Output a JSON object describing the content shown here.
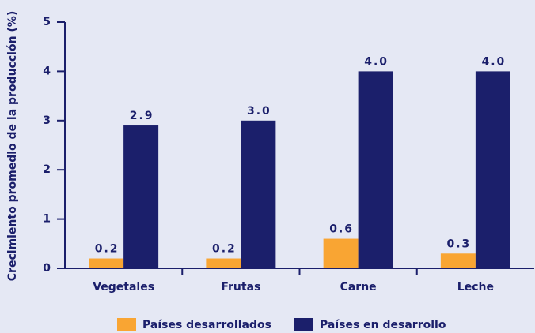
{
  "chart_data": {
    "type": "bar",
    "y_label": "Crecimiento promedio de la producción (%)",
    "categories": [
      "Vegetales",
      "Frutas",
      "Carne",
      "Leche"
    ],
    "series": [
      {
        "name": "Países desarrollados",
        "color": "#f9a533",
        "values": [
          0.2,
          0.2,
          0.6,
          0.3
        ],
        "value_labels": [
          "0.2",
          "0.2",
          "0.6",
          "0.3"
        ]
      },
      {
        "name": "Países en desarrollo",
        "color": "#1b1f6b",
        "values": [
          2.9,
          3.0,
          4.0,
          4.0
        ],
        "value_labels": [
          "2.9",
          "3.0",
          "4.0",
          "4.0"
        ]
      }
    ],
    "ylim": [
      0,
      5
    ],
    "yticks": [
      0,
      1,
      2,
      3,
      4,
      5
    ],
    "grid": false,
    "legend": "bottom"
  }
}
